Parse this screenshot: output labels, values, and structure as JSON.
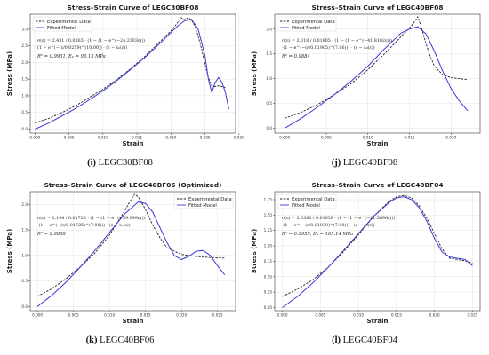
{
  "colors": {
    "experimental": "#222222",
    "fitted": "#3a3ad6",
    "axis": "#333333",
    "grid": "#e3e3e3",
    "legend_border": "#cccccc"
  },
  "chart_data": [
    {
      "type": "line",
      "title": "Stress–Strain Curve of LEGC30BF08",
      "xlabel": "Strain",
      "ylabel": "Stress (MPa)",
      "xlim": [
        -0.0007,
        0.0295
      ],
      "ylim": [
        -0.12,
        3.45
      ],
      "xticks": [
        "0.000",
        "0.005",
        "0.010",
        "0.015",
        "0.020",
        "0.025",
        "0.030"
      ],
      "yticks": [
        "0.0",
        "0.5",
        "1.0",
        "1.5",
        "2.0",
        "2.5",
        "3.0"
      ],
      "legend": [
        "Experimental Data",
        "Fitted Model"
      ],
      "legend_position": "top-left",
      "grid": true,
      "formula_lines": [
        "σ(ε) = 2.431 / 0.0265 · (1 − (1 − e^(−24.2303ε)))",
        "(1 − e^(−(ε/0.0259)^(10.00)) · (ε − ε₀(ε))"
      ],
      "metric_lines": [
        "R² = 0.9931, E₀ = 93.13 MPa"
      ],
      "series": [
        {
          "name": "Experimental Data",
          "style": "dashed",
          "x": [
            0,
            0.002,
            0.004,
            0.006,
            0.008,
            0.01,
            0.012,
            0.014,
            0.016,
            0.018,
            0.02,
            0.021,
            0.0215,
            0.022,
            0.0225,
            0.023,
            0.0235,
            0.024,
            0.0245,
            0.025,
            0.0255,
            0.026,
            0.0265,
            0.027,
            0.0275,
            0.028
          ],
          "y": [
            0.18,
            0.32,
            0.5,
            0.7,
            0.95,
            1.2,
            1.48,
            1.8,
            2.15,
            2.55,
            2.95,
            3.2,
            3.35,
            3.28,
            3.35,
            3.28,
            3.1,
            2.8,
            2.4,
            1.95,
            1.55,
            1.3,
            1.28,
            1.3,
            1.28,
            1.25
          ]
        },
        {
          "name": "Fitted Model",
          "style": "solid",
          "x": [
            0,
            0.002,
            0.004,
            0.006,
            0.008,
            0.01,
            0.012,
            0.014,
            0.016,
            0.018,
            0.02,
            0.021,
            0.022,
            0.023,
            0.024,
            0.025,
            0.0255,
            0.026,
            0.0265,
            0.027,
            0.0275,
            0.028,
            0.0285
          ],
          "y": [
            0.0,
            0.18,
            0.4,
            0.62,
            0.88,
            1.15,
            1.45,
            1.78,
            2.12,
            2.5,
            2.9,
            3.1,
            3.25,
            3.3,
            3.0,
            2.2,
            1.5,
            1.1,
            1.4,
            1.55,
            1.4,
            1.1,
            0.6
          ]
        }
      ]
    },
    {
      "type": "line",
      "title": "Stress–Strain Curve of LEGC40BF08",
      "xlabel": "Strain",
      "ylabel": "Stress (MPa)",
      "xlim": [
        -0.0012,
        0.0235
      ],
      "ylim": [
        -0.1,
        2.3
      ],
      "xticks": [
        "0.000",
        "0.005",
        "0.010",
        "0.015",
        "0.020"
      ],
      "yticks": [
        "0.0",
        "0.5",
        "1.0",
        "1.5",
        "2.0"
      ],
      "legend": [
        "Experimental Data",
        "Fitted Model"
      ],
      "legend_position": "top-left",
      "grid": true,
      "formula_lines": [
        "σ(ε) = 2.018 / 0.01905 · (1 − (1 − e^(−41.8102ε)))",
        "·(1 − e^(−(ε/0.01905)^(7.86))) · (ε − ε₀(ε))"
      ],
      "metric_lines": [
        "R² = 0.9884"
      ],
      "series": [
        {
          "name": "Experimental Data",
          "style": "dashed",
          "x": [
            0,
            0.002,
            0.004,
            0.006,
            0.008,
            0.01,
            0.012,
            0.014,
            0.015,
            0.0155,
            0.016,
            0.0165,
            0.017,
            0.0175,
            0.018,
            0.019,
            0.02,
            0.021,
            0.022
          ],
          "y": [
            0.2,
            0.32,
            0.48,
            0.68,
            0.9,
            1.18,
            1.5,
            1.85,
            2.02,
            2.12,
            2.25,
            2.0,
            1.7,
            1.45,
            1.25,
            1.08,
            1.02,
            1.0,
            0.98
          ]
        },
        {
          "name": "Fitted Model",
          "style": "solid",
          "x": [
            0,
            0.002,
            0.004,
            0.006,
            0.008,
            0.01,
            0.012,
            0.014,
            0.015,
            0.016,
            0.017,
            0.018,
            0.019,
            0.02,
            0.021,
            0.022
          ],
          "y": [
            0.0,
            0.2,
            0.43,
            0.68,
            0.95,
            1.25,
            1.6,
            1.92,
            2.0,
            2.05,
            1.9,
            1.55,
            1.15,
            0.8,
            0.55,
            0.35
          ]
        }
      ]
    },
    {
      "type": "line",
      "title": "Stress–Strain Curve of LEGC40BF06 (Optimized)",
      "xlabel": "Strain",
      "ylabel": "Stress (MPa)",
      "xlim": [
        -0.001,
        0.0275
      ],
      "ylim": [
        -0.08,
        2.25
      ],
      "xticks": [
        "0.000",
        "0.005",
        "0.010",
        "0.015",
        "0.020",
        "0.025"
      ],
      "yticks": [
        "0.0",
        "0.5",
        "1.0",
        "1.5",
        "2.0"
      ],
      "legend": [
        "Experimental Data",
        "Fitted Model"
      ],
      "legend_position": "top-right",
      "grid": true,
      "formula_lines": [
        "σ(ε) = 2.194 / 0.01725 · (1 − (1 − e^(−39.099ε)))",
        "·(1 − e^(−(ε/0.01725)^(7.00))) · (ε − ε₀(ε))"
      ],
      "metric_lines": [
        "R² = 0.9838"
      ],
      "series": [
        {
          "name": "Experimental Data",
          "style": "dashed",
          "x": [
            0,
            0.002,
            0.004,
            0.006,
            0.008,
            0.01,
            0.012,
            0.013,
            0.0135,
            0.014,
            0.015,
            0.016,
            0.017,
            0.018,
            0.02,
            0.022,
            0.024,
            0.026
          ],
          "y": [
            0.2,
            0.35,
            0.55,
            0.78,
            1.05,
            1.4,
            1.85,
            2.1,
            2.2,
            2.15,
            1.9,
            1.6,
            1.35,
            1.15,
            1.02,
            0.98,
            0.96,
            0.95
          ]
        },
        {
          "name": "Fitted Model",
          "style": "solid",
          "x": [
            0,
            0.002,
            0.004,
            0.006,
            0.008,
            0.01,
            0.012,
            0.014,
            0.015,
            0.016,
            0.017,
            0.018,
            0.019,
            0.02,
            0.021,
            0.022,
            0.023,
            0.024,
            0.025,
            0.026
          ],
          "y": [
            0.0,
            0.22,
            0.48,
            0.78,
            1.1,
            1.45,
            1.8,
            2.05,
            2.02,
            1.85,
            1.55,
            1.25,
            1.0,
            0.92,
            0.98,
            1.08,
            1.1,
            1.0,
            0.8,
            0.62
          ]
        }
      ]
    },
    {
      "type": "line",
      "title": "Stress–Strain Curve of LEGC40BF04",
      "xlabel": "Strain",
      "ylabel": "Stress (MPa)",
      "xlim": [
        -0.001,
        0.026
      ],
      "ylim": [
        -0.05,
        1.88
      ],
      "xticks": [
        "0.000",
        "0.005",
        "0.010",
        "0.015",
        "0.020",
        "0.025"
      ],
      "yticks": [
        "0.00",
        "0.25",
        "0.50",
        "0.75",
        "1.00",
        "1.25",
        "1.50",
        "1.75"
      ],
      "legend": [
        "Experimental Data",
        "Fitted Model"
      ],
      "legend_position": "top-left",
      "grid": true,
      "formula_lines": [
        "σ(ε) = 2.0380 / 0.01938 · (1 − (1 − e^(−21.5696ε)))",
        "·(1 − e^(−(ε/0.01938)^(7.00))) · (ε − ε₀(ε))"
      ],
      "metric_lines": [
        "R² = 0.9959, E₀ = 105.14 MPa"
      ],
      "series": [
        {
          "name": "Experimental Data",
          "style": "dashed",
          "x": [
            0,
            0.002,
            0.004,
            0.006,
            0.008,
            0.01,
            0.012,
            0.014,
            0.015,
            0.016,
            0.017,
            0.018,
            0.019,
            0.02,
            0.021,
            0.022,
            0.023,
            0.024,
            0.025
          ],
          "y": [
            0.18,
            0.3,
            0.45,
            0.65,
            0.9,
            1.18,
            1.48,
            1.72,
            1.8,
            1.82,
            1.78,
            1.65,
            1.45,
            1.2,
            0.95,
            0.8,
            0.78,
            0.76,
            0.72
          ]
        },
        {
          "name": "Fitted Model",
          "style": "solid",
          "x": [
            0,
            0.002,
            0.004,
            0.006,
            0.008,
            0.01,
            0.012,
            0.014,
            0.015,
            0.016,
            0.017,
            0.018,
            0.019,
            0.02,
            0.021,
            0.022,
            0.023,
            0.024,
            0.025
          ],
          "y": [
            0.0,
            0.18,
            0.4,
            0.65,
            0.92,
            1.2,
            1.48,
            1.7,
            1.78,
            1.8,
            1.75,
            1.62,
            1.4,
            1.12,
            0.9,
            0.82,
            0.8,
            0.78,
            0.68
          ]
        }
      ]
    }
  ],
  "captions": [
    {
      "letter": "(i)",
      "text": "LEGC30BF08"
    },
    {
      "letter": "(j)",
      "text": "LEGC40BF08"
    },
    {
      "letter": "(k)",
      "text": "LEGC40BF06"
    },
    {
      "letter": "(l)",
      "text": "LEGC40BF04"
    }
  ]
}
